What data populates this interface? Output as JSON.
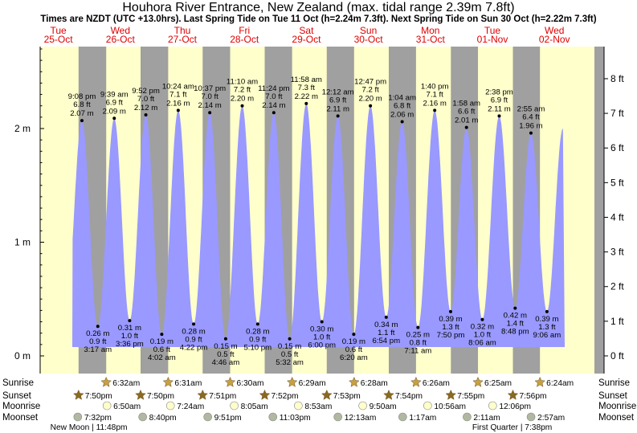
{
  "header": {
    "title": "Houhora River Entrance, New Zealand (max. tidal range 2.39m 7.8ft)",
    "subtitle": "Times are NZDT (UTC +13.0hrs). Last Spring Tide on Tue 11 Oct (h=2.24m 7.3ft). Next Spring Tide on Sun 30 Oct (h=2.22m 7.3ft)"
  },
  "colors": {
    "daylight": "#ffffcc",
    "night": "#a0a0a0",
    "water": "#9999ff",
    "day_label": "#e00000",
    "sun_star": "#c8a040",
    "sunset_star": "#8a6a20",
    "moonrise": "#ffffcc",
    "moonset": "#b0b8a0"
  },
  "chart_data": {
    "type": "area",
    "ylim_m": [
      -0.1,
      2.8
    ],
    "y_ticks_m": [
      {
        "v": 0,
        "label": "0 m"
      },
      {
        "v": 1,
        "label": "1 m"
      },
      {
        "v": 2,
        "label": "2 m"
      }
    ],
    "y_ticks_ft": [
      {
        "v": 0,
        "label": "0 ft"
      },
      {
        "v": 1,
        "label": "1 ft"
      },
      {
        "v": 2,
        "label": "2 ft"
      },
      {
        "v": 3,
        "label": "3 ft"
      },
      {
        "v": 4,
        "label": "4 ft"
      },
      {
        "v": 5,
        "label": "5 ft"
      },
      {
        "v": 6,
        "label": "6 ft"
      },
      {
        "v": 7,
        "label": "7 ft"
      },
      {
        "v": 8,
        "label": "8 ft"
      }
    ],
    "days": [
      {
        "name": "Tue",
        "date": "25-Oct"
      },
      {
        "name": "Wed",
        "date": "26-Oct"
      },
      {
        "name": "Thu",
        "date": "27-Oct"
      },
      {
        "name": "Fri",
        "date": "28-Oct"
      },
      {
        "name": "Sat",
        "date": "29-Oct"
      },
      {
        "name": "Sun",
        "date": "30-Oct"
      },
      {
        "name": "Mon",
        "date": "31-Oct"
      },
      {
        "name": "Tue",
        "date": "01-Nov"
      },
      {
        "name": "Wed",
        "date": "02-Nov"
      }
    ],
    "tides": [
      {
        "type": "high",
        "day": 0,
        "time": "9:08 pm",
        "m": 2.07,
        "m_label": "2.07 m",
        "ft_label": "6.8 ft"
      },
      {
        "type": "low",
        "day": 1,
        "time": "3:17 am",
        "m": 0.26,
        "m_label": "0.26 m",
        "ft_label": "0.9 ft"
      },
      {
        "type": "high",
        "day": 1,
        "time": "9:39 am",
        "m": 2.09,
        "m_label": "2.09 m",
        "ft_label": "6.9 ft"
      },
      {
        "type": "low",
        "day": 1,
        "time": "3:36 pm",
        "m": 0.31,
        "m_label": "0.31 m",
        "ft_label": "1.0 ft"
      },
      {
        "type": "high",
        "day": 1,
        "time": "9:52 pm",
        "m": 2.12,
        "m_label": "2.12 m",
        "ft_label": "7.0 ft"
      },
      {
        "type": "low",
        "day": 2,
        "time": "4:02 am",
        "m": 0.19,
        "m_label": "0.19 m",
        "ft_label": "0.6 ft"
      },
      {
        "type": "high",
        "day": 2,
        "time": "10:24 am",
        "m": 2.16,
        "m_label": "2.16 m",
        "ft_label": "7.1 ft"
      },
      {
        "type": "low",
        "day": 2,
        "time": "4:22 pm",
        "m": 0.28,
        "m_label": "0.28 m",
        "ft_label": "0.9 ft"
      },
      {
        "type": "high",
        "day": 2,
        "time": "10:37 pm",
        "m": 2.14,
        "m_label": "2.14 m",
        "ft_label": "7.0 ft"
      },
      {
        "type": "low",
        "day": 3,
        "time": "4:46 am",
        "m": 0.15,
        "m_label": "0.15 m",
        "ft_label": "0.5 ft"
      },
      {
        "type": "high",
        "day": 3,
        "time": "11:10 am",
        "m": 2.2,
        "m_label": "2.20 m",
        "ft_label": "7.2 ft"
      },
      {
        "type": "low",
        "day": 3,
        "time": "5:10 pm",
        "m": 0.28,
        "m_label": "0.28 m",
        "ft_label": "0.9 ft"
      },
      {
        "type": "high",
        "day": 3,
        "time": "11:24 pm",
        "m": 2.14,
        "m_label": "2.14 m",
        "ft_label": "7.0 ft"
      },
      {
        "type": "low",
        "day": 4,
        "time": "5:32 am",
        "m": 0.15,
        "m_label": "0.15 m",
        "ft_label": "0.5 ft"
      },
      {
        "type": "high",
        "day": 4,
        "time": "11:58 am",
        "m": 2.22,
        "m_label": "2.22 m",
        "ft_label": "7.3 ft"
      },
      {
        "type": "low",
        "day": 4,
        "time": "6:00 pm",
        "m": 0.3,
        "m_label": "0.30 m",
        "ft_label": "1.0 ft"
      },
      {
        "type": "high",
        "day": 5,
        "time": "12:12 am",
        "m": 2.11,
        "m_label": "2.11 m",
        "ft_label": "6.9 ft"
      },
      {
        "type": "low",
        "day": 5,
        "time": "6:20 am",
        "m": 0.19,
        "m_label": "0.19 m",
        "ft_label": "0.6 ft"
      },
      {
        "type": "high",
        "day": 5,
        "time": "12:47 pm",
        "m": 2.2,
        "m_label": "2.20 m",
        "ft_label": "7.2 ft"
      },
      {
        "type": "low",
        "day": 5,
        "time": "6:54 pm",
        "m": 0.34,
        "m_label": "0.34 m",
        "ft_label": "1.1 ft"
      },
      {
        "type": "high",
        "day": 6,
        "time": "1:04 am",
        "m": 2.06,
        "m_label": "2.06 m",
        "ft_label": "6.8 ft"
      },
      {
        "type": "low",
        "day": 6,
        "time": "7:11 am",
        "m": 0.25,
        "m_label": "0.25 m",
        "ft_label": "0.8 ft"
      },
      {
        "type": "high",
        "day": 6,
        "time": "1:40 pm",
        "m": 2.16,
        "m_label": "2.16 m",
        "ft_label": "7.1 ft"
      },
      {
        "type": "low",
        "day": 6,
        "time": "7:50 pm",
        "m": 0.39,
        "m_label": "0.39 m",
        "ft_label": "1.3 ft"
      },
      {
        "type": "high",
        "day": 7,
        "time": "1:58 am",
        "m": 2.01,
        "m_label": "2.01 m",
        "ft_label": "6.6 ft"
      },
      {
        "type": "low",
        "day": 7,
        "time": "8:06 am",
        "m": 0.32,
        "m_label": "0.32 m",
        "ft_label": "1.0 ft"
      },
      {
        "type": "high",
        "day": 7,
        "time": "2:38 pm",
        "m": 2.11,
        "m_label": "2.11 m",
        "ft_label": "6.9 ft"
      },
      {
        "type": "low",
        "day": 7,
        "time": "8:48 pm",
        "m": 0.42,
        "m_label": "0.42 m",
        "ft_label": "1.4 ft"
      },
      {
        "type": "high",
        "day": 8,
        "time": "2:55 am",
        "m": 1.96,
        "m_label": "1.96 m",
        "ft_label": "6.4 ft"
      },
      {
        "type": "low",
        "day": 8,
        "time": "9:06 am",
        "m": 0.39,
        "m_label": "0.39 m",
        "ft_label": "1.3 ft"
      }
    ],
    "sunrise": [
      "6:32am",
      "6:31am",
      "6:30am",
      "6:29am",
      "6:28am",
      "6:26am",
      "6:25am",
      "6:24am"
    ],
    "sunrise_days": [
      1,
      2,
      3,
      4,
      5,
      6,
      7,
      8
    ],
    "sunset": [
      "7:50pm",
      "7:50pm",
      "7:51pm",
      "7:52pm",
      "7:53pm",
      "7:54pm",
      "7:55pm",
      "7:56pm"
    ],
    "sunset_days": [
      0,
      1,
      2,
      3,
      4,
      5,
      6,
      7
    ],
    "moonrise": [
      "6:50am",
      "7:24am",
      "8:05am",
      "8:53am",
      "9:50am",
      "10:56am",
      "12:06pm"
    ],
    "moonrise_days": [
      1,
      2,
      3,
      4,
      5,
      6,
      7
    ],
    "moonset": [
      "7:32pm",
      "8:40pm",
      "9:51pm",
      "11:03pm",
      "12:13am",
      "1:17am",
      "2:11am",
      "2:57am"
    ],
    "moonset_days": [
      0,
      1,
      2,
      3,
      5,
      6,
      7,
      8
    ],
    "row_labels": {
      "sunrise": "Sunrise",
      "sunset": "Sunset",
      "moonrise": "Moonrise",
      "moonset": "Moonset"
    },
    "moon_phases": [
      {
        "label": "New Moon | 11:48pm",
        "day": 0,
        "time": "11:48pm"
      },
      {
        "label": "First Quarter | 7:38pm",
        "day": 7,
        "time": "7:38pm"
      }
    ]
  }
}
